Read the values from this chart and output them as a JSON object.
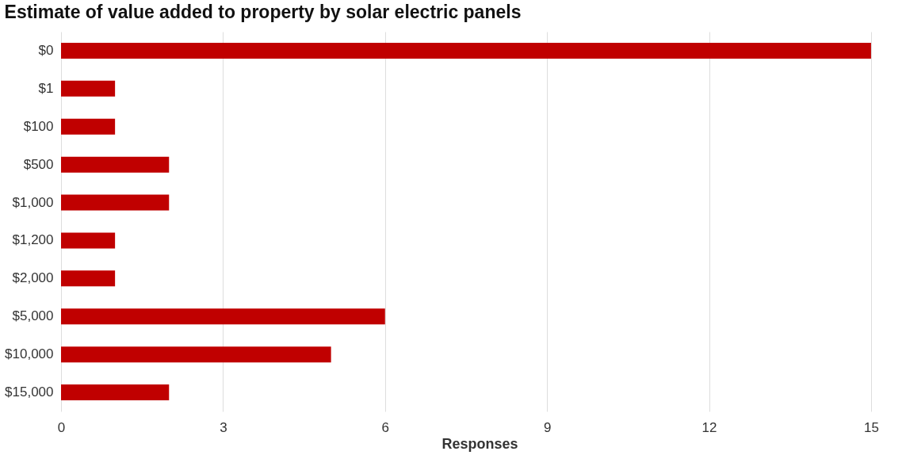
{
  "chart_data": {
    "type": "bar",
    "orientation": "horizontal",
    "title": "Estimate of value added to property by solar electric panels",
    "xlabel": "Responses",
    "categories": [
      "$0",
      "$1",
      "$100",
      "$500",
      "$1,000",
      "$1,200",
      "$2,000",
      "$5,000",
      "$10,000",
      "$15,000"
    ],
    "values": [
      15,
      1,
      1,
      2,
      2,
      1,
      1,
      6,
      5,
      2
    ],
    "color": "#c00000",
    "xlim": [
      0,
      15.5
    ],
    "xticks": [
      0,
      3,
      6,
      9,
      12,
      15
    ],
    "grid": "x"
  }
}
